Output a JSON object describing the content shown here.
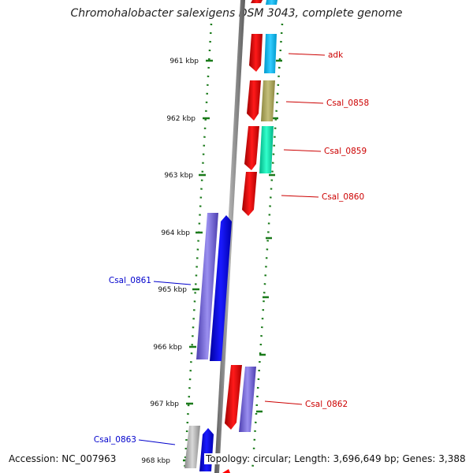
{
  "title": "Chromohalobacter salexigens DSM 3043, complete genome",
  "footer": {
    "accession": "Accession: NC_007963",
    "summary": "Topology: circular; Length: 3,696,649 bp; Genes: 3,388"
  },
  "ticks": [
    "961 kbp",
    "962 kbp",
    "963 kbp",
    "964 kbp",
    "965 kbp",
    "966 kbp",
    "967 kbp",
    "968 kbp"
  ],
  "genes": [
    {
      "label": "adk",
      "strand": "forward",
      "color": "#00bfff"
    },
    {
      "label": "Csal_0858",
      "strand": "forward",
      "color": "#b5b068"
    },
    {
      "label": "Csal_0859",
      "strand": "forward",
      "color": "#00e6a8"
    },
    {
      "label": "Csal_0860",
      "strand": "forward",
      "color": "#ff0000"
    },
    {
      "label": "Csal_0861",
      "strand": "reverse",
      "color": "#7a6be0"
    },
    {
      "label": "Csal_0862",
      "strand": "forward",
      "color": "#7a6be0"
    },
    {
      "label": "Csal_0863",
      "strand": "reverse",
      "color": "#b0b0b0"
    }
  ],
  "colors": {
    "forward_label": "#cc0000",
    "reverse_label": "#0000cc",
    "forward_strand": "#ff0000",
    "reverse_strand": "#0000ff",
    "backbone": "#8a8a8a",
    "tick": "#1a7a1a"
  }
}
